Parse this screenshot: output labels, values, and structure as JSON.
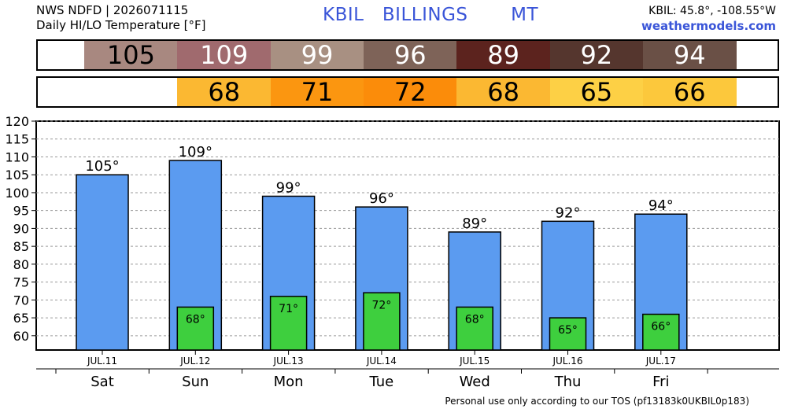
{
  "header": {
    "source": "NWS NDFD | 2026071115",
    "product": "Daily HI/LO Temperature [°F]",
    "station_title": "KBIL   BILLINGS       MT",
    "coords": "KBIL: 45.8°, -108.55°W",
    "site": "weathermodels.com"
  },
  "hi_strip": [
    {
      "text": "105",
      "bg": "#a88880",
      "fg": "#000000"
    },
    {
      "text": "109",
      "bg": "#a06a6e",
      "fg": "#ffffff"
    },
    {
      "text": "99",
      "bg": "#a89082",
      "fg": "#ffffff"
    },
    {
      "text": "96",
      "bg": "#7e6358",
      "fg": "#ffffff"
    },
    {
      "text": "89",
      "bg": "#5c231e",
      "fg": "#ffffff"
    },
    {
      "text": "92",
      "bg": "#55362e",
      "fg": "#ffffff"
    },
    {
      "text": "94",
      "bg": "#6a5046",
      "fg": "#ffffff"
    }
  ],
  "lo_strip": [
    {
      "text": "68",
      "bg": "#fbb832",
      "fg": "#000000"
    },
    {
      "text": "71",
      "bg": "#fb9610",
      "fg": "#000000"
    },
    {
      "text": "72",
      "bg": "#fb8c0a",
      "fg": "#000000"
    },
    {
      "text": "68",
      "bg": "#fbb832",
      "fg": "#000000"
    },
    {
      "text": "65",
      "bg": "#fdd045",
      "fg": "#000000"
    },
    {
      "text": "66",
      "bg": "#fcc83c",
      "fg": "#000000"
    }
  ],
  "chart_data": {
    "type": "bar",
    "categories": [
      "JUL.11",
      "JUL.12",
      "JUL.13",
      "JUL.14",
      "JUL.15",
      "JUL.16",
      "JUL.17"
    ],
    "weekdays": [
      "Sat",
      "Sun",
      "Mon",
      "Tue",
      "Wed",
      "Thu",
      "Fri"
    ],
    "series": [
      {
        "values": [
          105,
          109,
          99,
          96,
          89,
          92,
          94
        ],
        "labels": [
          "105°",
          "109°",
          "99°",
          "96°",
          "89°",
          "92°",
          "94°"
        ],
        "color": "#5b9bf0"
      },
      {
        "values": [
          null,
          68,
          71,
          72,
          68,
          65,
          66
        ],
        "labels": [
          "",
          "68°",
          "71°",
          "72°",
          "68°",
          "65°",
          "66°"
        ],
        "color": "#3ecf3e"
      }
    ],
    "ylim": [
      56,
      120
    ],
    "yticks": [
      120,
      115,
      110,
      105,
      100,
      95,
      90,
      85,
      80,
      75,
      70,
      65,
      60
    ],
    "grid": true
  },
  "footer": "Personal use only according to our TOS (pf13183k0UKBIL0p183)"
}
